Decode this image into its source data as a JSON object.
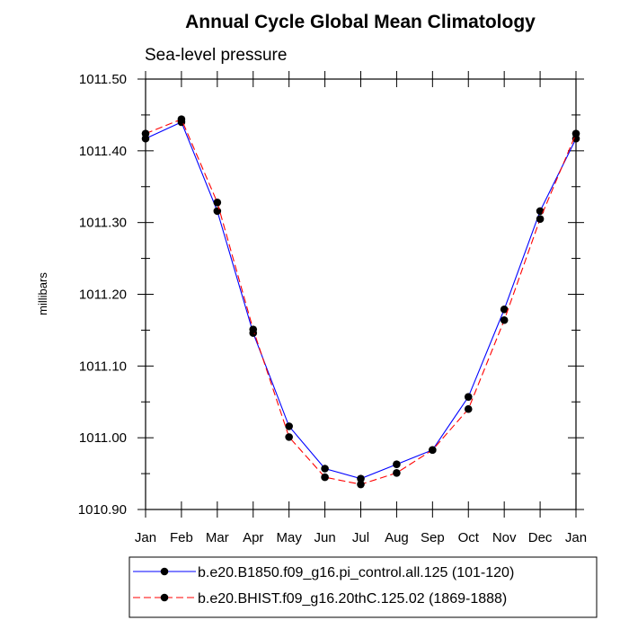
{
  "chart_data": {
    "type": "line",
    "title": "Annual Cycle Global Mean Climatology",
    "subtitle": "Sea-level pressure",
    "xlabel": "",
    "ylabel": "millibars",
    "categories": [
      "Jan",
      "Feb",
      "Mar",
      "Apr",
      "May",
      "Jun",
      "Jul",
      "Aug",
      "Sep",
      "Oct",
      "Nov",
      "Dec",
      "Jan"
    ],
    "ylim": [
      1010.9,
      1011.5
    ],
    "yticks": [
      "1010.90",
      "1011.00",
      "1011.10",
      "1011.20",
      "1011.30",
      "1011.40",
      "1011.50"
    ],
    "grid": false,
    "legend_position": "bottom",
    "series": [
      {
        "name": "b.e20.B1850.f09_g16.pi_control.all.125 (101-120)",
        "color": "#0000ff",
        "dash": "solid",
        "marker": "circle",
        "values": [
          1011.417,
          1011.44,
          1011.316,
          1011.146,
          1011.016,
          1010.957,
          1010.943,
          1010.963,
          1010.983,
          1011.057,
          1011.179,
          1011.316,
          1011.417
        ]
      },
      {
        "name": "b.e20.BHIST.f09_g16.20thC.125.02 (1869-1888)",
        "color": "#ff0000",
        "dash": "dashed",
        "marker": "circle",
        "values": [
          1011.424,
          1011.444,
          1011.328,
          1011.151,
          1011.001,
          1010.945,
          1010.935,
          1010.951,
          1010.983,
          1011.04,
          1011.164,
          1011.305,
          1011.424
        ]
      }
    ]
  }
}
